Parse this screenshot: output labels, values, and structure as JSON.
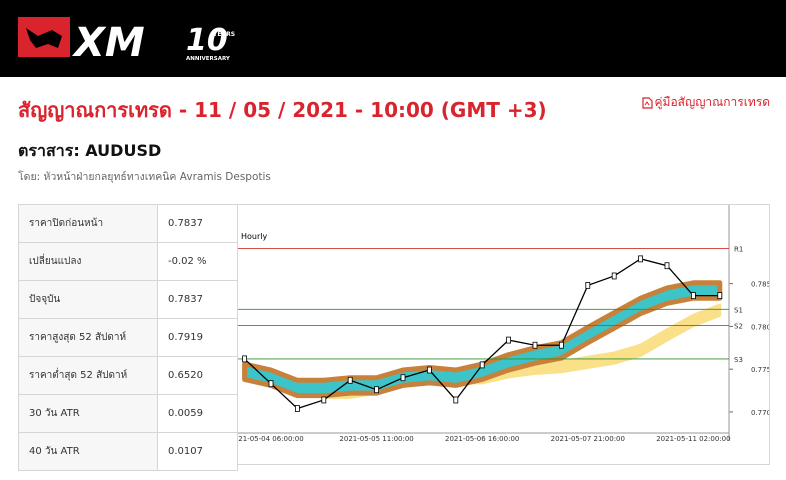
{
  "header": {
    "logo": "XM",
    "years_number": "10",
    "years_word": "YEARS",
    "anniversary": "ANNIVERSARY"
  },
  "title": "สัญญาณการเทรด - 11 / 05 / 2021 - 10:00 (GMT +3)",
  "guide_link": "คู่มือสัญญาณการเทรด",
  "instrument": "ตราสาร: AUDUSD",
  "author": "โดย: หัวหน้าฝ่ายกลยุทธ์ทางเทคนิค Avramis Despotis",
  "table": {
    "rows": [
      [
        "ราคาปิดก่อนหน้า",
        "0.7837"
      ],
      [
        "เปลี่ยนแปลง",
        "-0.02 %"
      ],
      [
        "ปัจจุบัน",
        "0.7837"
      ],
      [
        "ราคาสูงสุด 52 สัปดาห์",
        "0.7919"
      ],
      [
        "ราคาต่ำสุด 52 สัปดาห์",
        "0.6520"
      ],
      [
        "30 วัน ATR",
        "0.0059"
      ],
      [
        "40 วัน ATR",
        "0.0107"
      ]
    ]
  },
  "chart_data": {
    "type": "line",
    "label": "Hourly",
    "categories": [
      null,
      "21-05-04 06:00:00",
      null,
      null,
      null,
      "2021-05-05 11:00:00",
      null,
      null,
      null,
      "2021-05-06 16:00:00",
      null,
      null,
      null,
      "2021-05-07 21:00:00",
      null,
      null,
      null,
      "2021-05-11 02:00:00",
      null
    ],
    "series": [
      {
        "color": "#000000",
        "values": [
          0.7762,
          0.7733,
          0.7704,
          0.7714,
          0.7737,
          0.7726,
          0.774,
          0.7749,
          0.7714,
          0.7755,
          0.7784,
          0.7778,
          0.7778,
          0.7848,
          0.7859,
          0.7879,
          0.7871,
          0.7836,
          0.7836
        ]
      }
    ],
    "bands": [
      {
        "color": "#fbe08a",
        "upper": [
          0.7753,
          0.7746,
          0.7737,
          0.7729,
          0.7729,
          0.7734,
          0.7743,
          0.7749,
          0.7746,
          0.7746,
          0.7753,
          0.7757,
          0.7759,
          0.7764,
          0.7769,
          0.7778,
          0.7796,
          0.7813,
          0.7825
        ],
        "lower": [
          0.7741,
          0.7734,
          0.7725,
          0.7717,
          0.7717,
          0.7722,
          0.7731,
          0.7737,
          0.7734,
          0.7734,
          0.7741,
          0.7745,
          0.7747,
          0.7752,
          0.7757,
          0.7766,
          0.7784,
          0.7801,
          0.7813
        ]
      },
      {
        "color": "#3cc4c8",
        "edge": "#c8813a",
        "upper": [
          0.7756,
          0.7749,
          0.7737,
          0.7737,
          0.774,
          0.774,
          0.7749,
          0.7752,
          0.7749,
          0.7756,
          0.7767,
          0.7775,
          0.7781,
          0.7799,
          0.7816,
          0.7833,
          0.7845,
          0.7851,
          0.7851
        ],
        "lower": [
          0.7738,
          0.7731,
          0.7719,
          0.7719,
          0.7722,
          0.7722,
          0.7731,
          0.7734,
          0.7731,
          0.7738,
          0.7749,
          0.7757,
          0.7763,
          0.7781,
          0.7798,
          0.7815,
          0.7827,
          0.7833,
          0.7833
        ]
      }
    ],
    "levels": [
      {
        "name": "R1",
        "value": 0.7891,
        "color": "#cc3333"
      },
      {
        "name": "S1",
        "value": 0.782,
        "color": "#2f8f2f"
      },
      {
        "name": "S2",
        "value": 0.7801,
        "color": "#2f8f2f"
      },
      {
        "name": "S3",
        "value": 0.7762,
        "color": "#2f8f2f"
      }
    ],
    "ylim": [
      0.7666,
      0.7942
    ],
    "yticks": [
      {
        "value": 0.77,
        "label": "0.7700"
      },
      {
        "value": 0.775,
        "label": "0.7750"
      },
      {
        "value": 0.78,
        "label": "0.7800"
      },
      {
        "value": 0.785,
        "label": "0.7850"
      }
    ]
  }
}
